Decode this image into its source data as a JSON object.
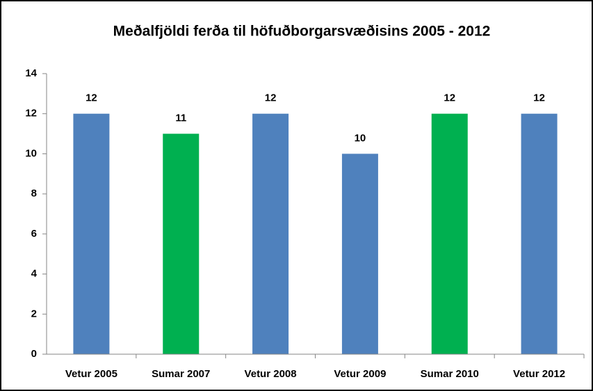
{
  "chart_data": {
    "type": "bar",
    "title": "Meðalfjöldi ferða til höfuðborgarsvæðisins 2005 - 2012",
    "categories": [
      "Vetur 2005",
      "Sumar 2007",
      "Vetur 2008",
      "Vetur 2009",
      "Sumar 2010",
      "Vetur 2012"
    ],
    "values": [
      12,
      11,
      12,
      10,
      12,
      12
    ],
    "colors": [
      "#4f81bd",
      "#00b050",
      "#4f81bd",
      "#4f81bd",
      "#00b050",
      "#4f81bd"
    ],
    "ylim": [
      0,
      14
    ],
    "yticks": [
      0,
      2,
      4,
      6,
      8,
      10,
      12,
      14
    ],
    "grid": false
  }
}
